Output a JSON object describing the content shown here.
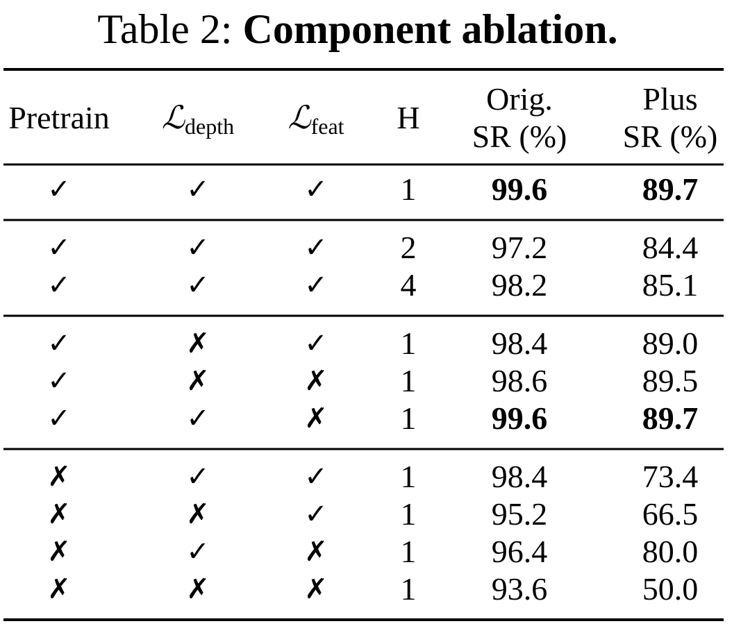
{
  "caption": {
    "label": "Table 2:",
    "title": "Component ablation."
  },
  "table": {
    "header": [
      {
        "text": "Pretrain"
      },
      {
        "symbol": "ℒ",
        "sub": "depth"
      },
      {
        "symbol": "ℒ",
        "sub": "feat"
      },
      {
        "text": "H"
      },
      {
        "lines": [
          "Orig.",
          "SR (%)"
        ]
      },
      {
        "lines": [
          "Plus",
          "SR (%)"
        ]
      }
    ],
    "groups": [
      [
        {
          "cells": [
            "✓",
            "✓",
            "✓",
            "1",
            "99.6",
            "89.7"
          ],
          "bold_columns": [
            4,
            5
          ]
        }
      ],
      [
        {
          "cells": [
            "✓",
            "✓",
            "✓",
            "2",
            "97.2",
            "84.4"
          ]
        },
        {
          "cells": [
            "✓",
            "✓",
            "✓",
            "4",
            "98.2",
            "85.1"
          ]
        }
      ],
      [
        {
          "cells": [
            "✓",
            "✗",
            "✓",
            "1",
            "98.4",
            "89.0"
          ]
        },
        {
          "cells": [
            "✓",
            "✗",
            "✗",
            "1",
            "98.6",
            "89.5"
          ]
        },
        {
          "cells": [
            "✓",
            "✓",
            "✗",
            "1",
            "99.6",
            "89.7"
          ],
          "bold_columns": [
            4,
            5
          ]
        }
      ],
      [
        {
          "cells": [
            "✗",
            "✓",
            "✓",
            "1",
            "98.4",
            "73.4"
          ]
        },
        {
          "cells": [
            "✗",
            "✗",
            "✓",
            "1",
            "95.2",
            "66.5"
          ]
        },
        {
          "cells": [
            "✗",
            "✓",
            "✗",
            "1",
            "96.4",
            "80.0"
          ]
        },
        {
          "cells": [
            "✗",
            "✗",
            "✗",
            "1",
            "93.6",
            "50.0"
          ]
        }
      ]
    ]
  }
}
